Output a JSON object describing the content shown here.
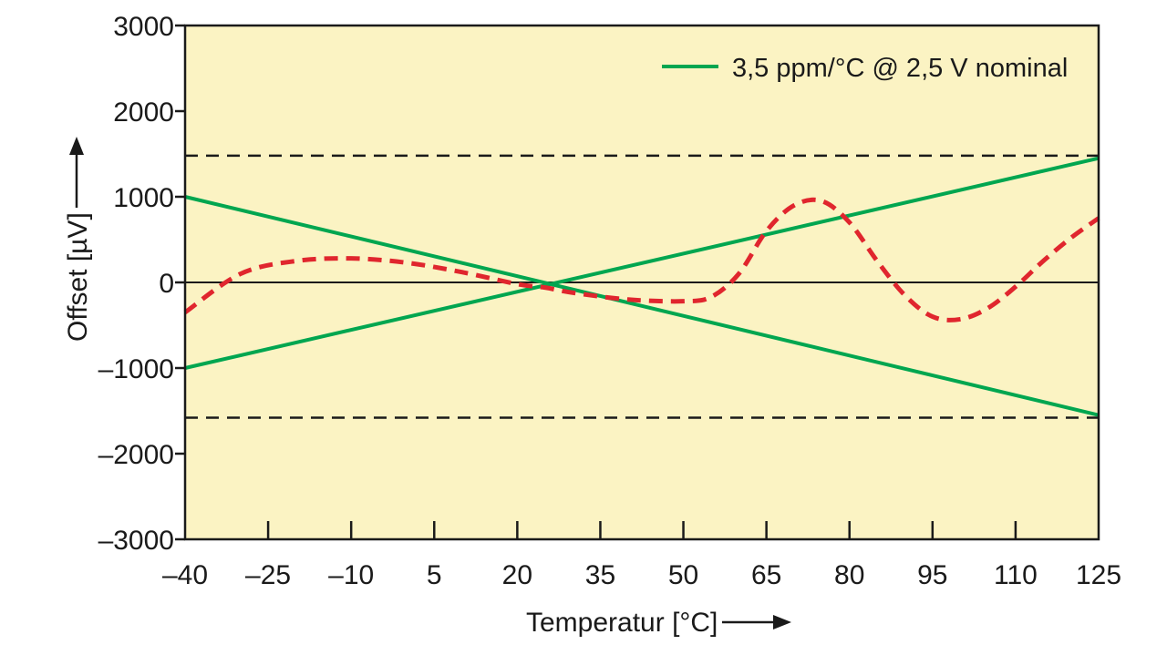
{
  "chart_data": {
    "type": "line",
    "xlabel": "Temperatur [°C]",
    "ylabel": "Offset [µV]",
    "xlim": [
      -40,
      125
    ],
    "ylim": [
      -3000,
      3000
    ],
    "xticks": [
      -40,
      -25,
      -10,
      5,
      20,
      35,
      50,
      65,
      80,
      95,
      110,
      125
    ],
    "yticks": [
      3000,
      2000,
      1000,
      0,
      -1000,
      -2000,
      -3000
    ],
    "x_tick_labels": [
      "–40",
      "–25",
      "–10",
      "5",
      "20",
      "35",
      "50",
      "65",
      "80",
      "95",
      "110",
      "125"
    ],
    "y_tick_labels": [
      "3000",
      "2000",
      "1000",
      "0",
      "–1000",
      "–2000",
      "–3000"
    ],
    "legend": {
      "position": "top-right",
      "entries": [
        "3,5 ppm/°C @ 2,5 V nominal"
      ]
    },
    "grid": false,
    "colors": {
      "background": "#fbf3c3",
      "limit_lines": "#00a650",
      "measured": "#e0262e",
      "bounds": "#1a1a1a",
      "zero": "#1a1a1a"
    },
    "series": [
      {
        "name": "3,5 ppm/°C @ 2,5 V nominal",
        "style": "solid",
        "x": [
          -40,
          125
        ],
        "y": [
          -1000,
          1450
        ]
      },
      {
        "style": "solid",
        "x": [
          -40,
          125
        ],
        "y": [
          1000,
          -1550
        ]
      },
      {
        "style": "dashed",
        "x": [
          -40,
          -30,
          -20,
          -10,
          0,
          10,
          20,
          25,
          30,
          40,
          50,
          55,
          60,
          65,
          70,
          75,
          80,
          85,
          90,
          95,
          100,
          105,
          110,
          115,
          120,
          125
        ],
        "y": [
          -350,
          100,
          250,
          280,
          230,
          120,
          -20,
          -60,
          -120,
          -200,
          -220,
          -170,
          100,
          600,
          900,
          950,
          700,
          250,
          -150,
          -400,
          -430,
          -300,
          -50,
          250,
          520,
          750
        ]
      }
    ],
    "reference_lines": [
      {
        "y": 1480,
        "style": "dashed"
      },
      {
        "y": -1580,
        "style": "dashed"
      },
      {
        "y": 0,
        "style": "solid"
      }
    ]
  }
}
